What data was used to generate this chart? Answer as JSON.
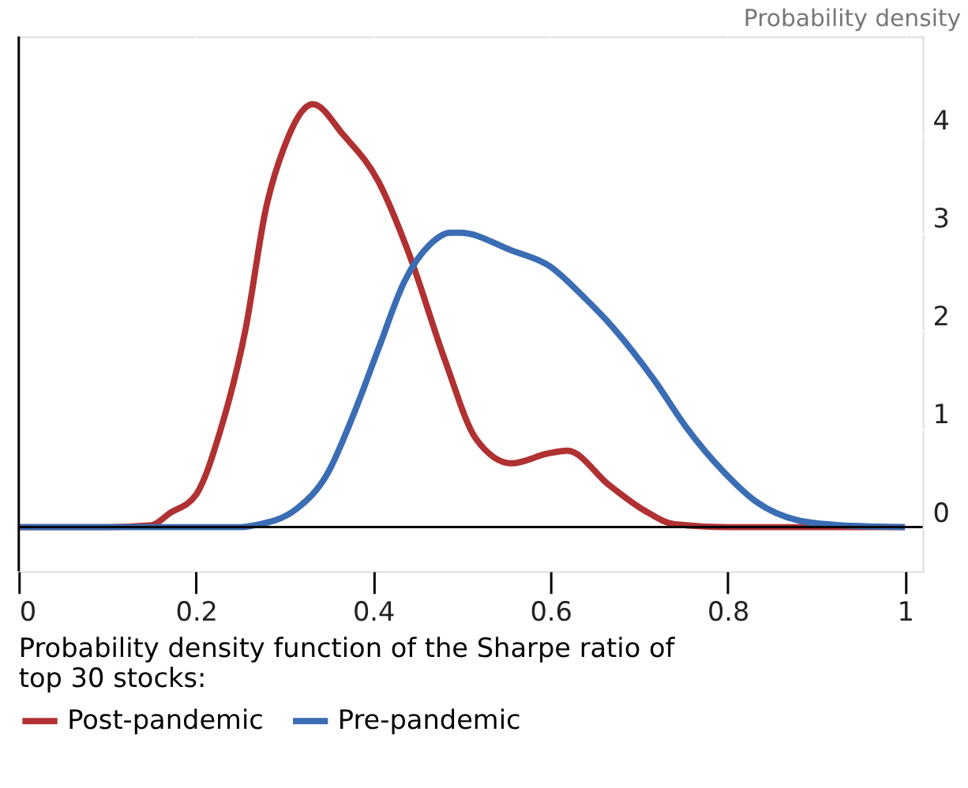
{
  "chart_data": {
    "type": "line",
    "ylabel": "Probability density",
    "legend_title": "Probability density function of the Sharpe ratio of top 30 stocks:",
    "xlim": [
      0,
      1.02
    ],
    "xticks": [
      0,
      0.2,
      0.4,
      0.6,
      0.8,
      1
    ],
    "ylim": [
      -0.45,
      5
    ],
    "yticks": [
      0,
      1,
      2,
      3,
      4
    ],
    "grid": true,
    "legend": "bottom left",
    "line_style": "solid",
    "series": [
      {
        "name": "Post-pandemic",
        "color": "#b03132",
        "x": [
          0,
          0.1,
          0.15,
          0.17,
          0.2,
          0.227,
          0.256,
          0.279,
          0.299,
          0.332,
          0.366,
          0.406,
          0.441,
          0.481,
          0.516,
          0.556,
          0.597,
          0.619,
          0.666,
          0.706,
          0.74,
          0.8,
          1
        ],
        "values": [
          0,
          0,
          0.02,
          0.14,
          0.33,
          0.97,
          2.02,
          3.25,
          3.86,
          4.31,
          4.0,
          3.52,
          2.77,
          1.7,
          0.9,
          0.65,
          0.75,
          0.78,
          0.43,
          0.17,
          0.03,
          0,
          0
        ]
      },
      {
        "name": "Pre-pandemic",
        "color": "#3a6db4",
        "x": [
          0,
          0.25,
          0.267,
          0.314,
          0.348,
          0.377,
          0.406,
          0.435,
          0.464,
          0.487,
          0.498,
          0.556,
          0.599,
          0.637,
          0.671,
          0.717,
          0.753,
          0.798,
          0.832,
          0.879,
          0.926,
          1
        ],
        "values": [
          0,
          0,
          0.02,
          0.19,
          0.54,
          1.13,
          1.82,
          2.5,
          2.88,
          3.0,
          3.0,
          2.82,
          2.66,
          2.35,
          2.03,
          1.5,
          1.02,
          0.54,
          0.26,
          0.07,
          0.02,
          0
        ]
      }
    ]
  }
}
